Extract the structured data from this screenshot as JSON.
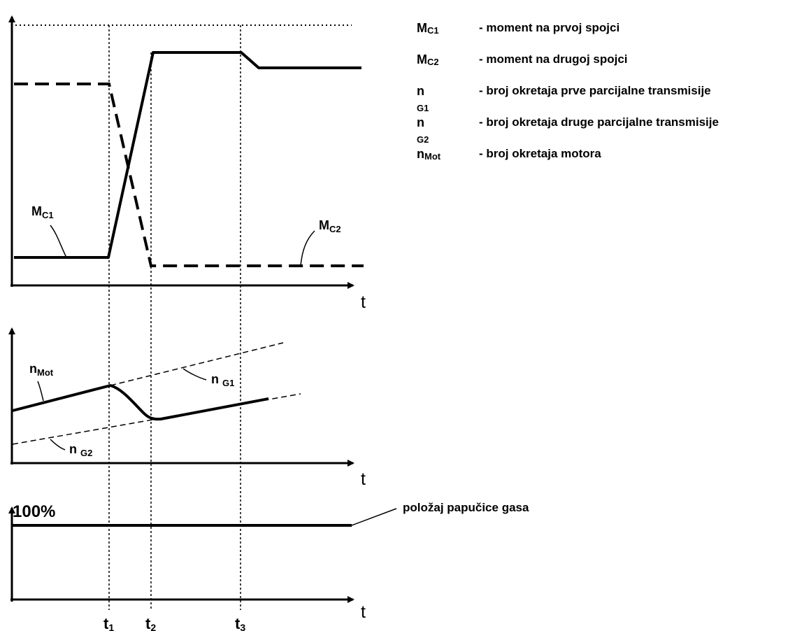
{
  "legend": [
    {
      "symbol": "M",
      "sub": "C1",
      "desc": "- moment na prvoj spojci"
    },
    {
      "symbol": "M",
      "sub": "C2",
      "desc": "- moment na drugoj spojci"
    },
    {
      "symbol": "n ",
      "sub": "G1",
      "desc": "- broj okretaja prve parcijalne transmisije"
    },
    {
      "symbol": "n ",
      "sub": "G2",
      "desc": "- broj okretaja druge parcijalne transmisije"
    },
    {
      "symbol": "n",
      "sub": "Mot",
      "desc": "- broj okretaja motora"
    }
  ],
  "axis_labels": {
    "t_top": "t",
    "t_mid": "t",
    "t_bottom": "t"
  },
  "time_marks": [
    {
      "main": "t",
      "sub": "1"
    },
    {
      "main": "t",
      "sub": "2"
    },
    {
      "main": "t",
      "sub": "3"
    }
  ],
  "curve_labels": {
    "mc1": {
      "main": "M",
      "sub": "C1"
    },
    "mc2": {
      "main": "M",
      "sub": "C2"
    },
    "nmot": {
      "main": "n",
      "sub": "Mot"
    },
    "ng1": {
      "main": "n ",
      "sub": "G1"
    },
    "ng2": {
      "main": "n ",
      "sub": "G2"
    }
  },
  "pedal": {
    "level_label": "100%",
    "caption": "položaj papučice gasa"
  }
}
